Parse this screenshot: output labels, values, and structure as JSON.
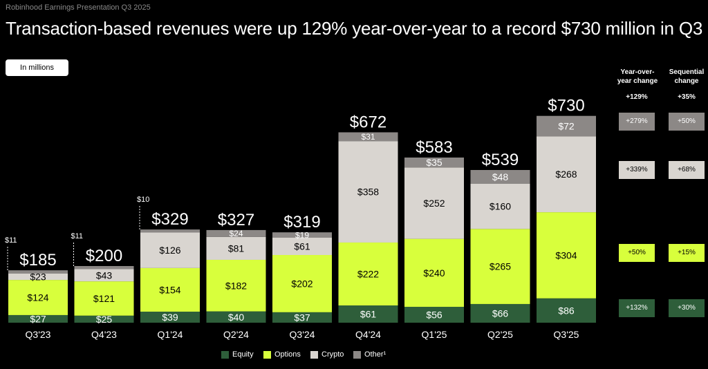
{
  "header": "Robinhood Earnings Presentation Q3 2025",
  "title": "Transaction-based revenues were up 129% year-over-year to a record $730 million in Q3",
  "units_label": "In millions",
  "colors": {
    "Equity": "#2e5e3a",
    "Options": "#d8ff3c",
    "Crypto": "#d9d5d0",
    "Other": "#8c8886"
  },
  "chart_data": {
    "type": "bar",
    "stacked": true,
    "categories": [
      "Q3'23",
      "Q4'23",
      "Q1'24",
      "Q2'24",
      "Q3'24",
      "Q4'24",
      "Q1'25",
      "Q2'25",
      "Q3'25"
    ],
    "totals": [
      "$185",
      "$200",
      "$329",
      "$327",
      "$319",
      "$672",
      "$583",
      "$539",
      "$730"
    ],
    "total_values": [
      185,
      200,
      329,
      327,
      319,
      672,
      583,
      539,
      730
    ],
    "series": [
      {
        "name": "Equity",
        "values": [
          27,
          25,
          39,
          40,
          37,
          61,
          56,
          66,
          86
        ],
        "labels": [
          "$27",
          "$25",
          "$39",
          "$40",
          "$37",
          "$61",
          "$56",
          "$66",
          "$86"
        ]
      },
      {
        "name": "Options",
        "values": [
          124,
          121,
          154,
          182,
          202,
          222,
          240,
          265,
          304
        ],
        "labels": [
          "$124",
          "$121",
          "$154",
          "$182",
          "$202",
          "$222",
          "$240",
          "$265",
          "$304"
        ]
      },
      {
        "name": "Crypto",
        "values": [
          23,
          43,
          126,
          81,
          61,
          358,
          252,
          160,
          268
        ],
        "labels": [
          "$23",
          "$43",
          "$126",
          "$81",
          "$61",
          "$358",
          "$252",
          "$160",
          "$268"
        ]
      },
      {
        "name": "Other",
        "values": [
          11,
          11,
          10,
          24,
          19,
          31,
          35,
          48,
          72
        ],
        "labels": [
          "$11",
          "$11",
          "$10",
          "$24",
          "$19",
          "$31",
          "$35",
          "$48",
          "$72"
        ]
      }
    ],
    "legend": [
      "Equity",
      "Options",
      "Crypto",
      "Other¹"
    ],
    "legend_position": "bottom-center"
  },
  "change_table": {
    "headers": [
      "Year-over-\nyear change",
      "Sequential\nchange"
    ],
    "total": {
      "yoy": "+129%",
      "seq": "+35%"
    },
    "rows": [
      {
        "series": "Other",
        "yoy": "+279%",
        "seq": "+50%"
      },
      {
        "series": "Crypto",
        "yoy": "+339%",
        "seq": "+68%"
      },
      {
        "series": "Options",
        "yoy": "+50%",
        "seq": "+15%"
      },
      {
        "series": "Equity",
        "yoy": "+132%",
        "seq": "+30%"
      }
    ]
  }
}
